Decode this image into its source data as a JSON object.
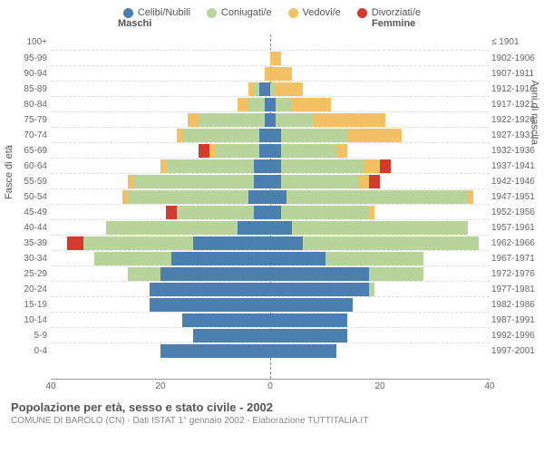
{
  "legend": [
    {
      "label": "Celibi/Nubili",
      "color": "#4a7fb0"
    },
    {
      "label": "Coniugati/e",
      "color": "#b8d49a"
    },
    {
      "label": "Vedovi/e",
      "color": "#f3c163"
    },
    {
      "label": "Divorziati/e",
      "color": "#d33b2f"
    }
  ],
  "headers": {
    "m": "Maschi",
    "f": "Femmine"
  },
  "y_title_left": "Fasce di età",
  "y_title_right": "Anni di nascita",
  "x_ticks": [
    40,
    20,
    0,
    20,
    40
  ],
  "x_max": 40,
  "bg": "#ffffff",
  "grid_color": "#dddddd",
  "rows": [
    {
      "age": "100+",
      "birth": "≤ 1901",
      "m": [
        0,
        0,
        0,
        0
      ],
      "f": [
        0,
        0,
        0,
        0
      ]
    },
    {
      "age": "95-99",
      "birth": "1902-1906",
      "m": [
        0,
        0,
        0,
        0
      ],
      "f": [
        0,
        0,
        2,
        0
      ]
    },
    {
      "age": "90-94",
      "birth": "1907-1911",
      "m": [
        0,
        0,
        1,
        0
      ],
      "f": [
        0,
        0,
        4,
        0
      ]
    },
    {
      "age": "85-89",
      "birth": "1912-1916",
      "m": [
        2,
        1,
        1,
        0
      ],
      "f": [
        0,
        1,
        5,
        0
      ]
    },
    {
      "age": "80-84",
      "birth": "1917-1921",
      "m": [
        1,
        3,
        2,
        0
      ],
      "f": [
        1,
        3,
        7,
        0
      ]
    },
    {
      "age": "75-79",
      "birth": "1922-1926",
      "m": [
        1,
        12,
        2,
        0
      ],
      "f": [
        1,
        7,
        13,
        0
      ]
    },
    {
      "age": "70-74",
      "birth": "1927-1931",
      "m": [
        2,
        14,
        1,
        0
      ],
      "f": [
        2,
        12,
        10,
        0
      ]
    },
    {
      "age": "65-69",
      "birth": "1932-1936",
      "m": [
        2,
        8,
        1,
        2
      ],
      "f": [
        2,
        10,
        2,
        0
      ]
    },
    {
      "age": "60-64",
      "birth": "1937-1941",
      "m": [
        3,
        16,
        1,
        0
      ],
      "f": [
        2,
        15,
        3,
        2
      ]
    },
    {
      "age": "55-59",
      "birth": "1942-1946",
      "m": [
        3,
        22,
        1,
        0
      ],
      "f": [
        2,
        14,
        2,
        2
      ]
    },
    {
      "age": "50-54",
      "birth": "1947-1951",
      "m": [
        4,
        22,
        1,
        0
      ],
      "f": [
        3,
        33,
        1,
        0
      ]
    },
    {
      "age": "45-49",
      "birth": "1952-1956",
      "m": [
        3,
        14,
        0,
        2
      ],
      "f": [
        2,
        16,
        1,
        0
      ]
    },
    {
      "age": "40-44",
      "birth": "1957-1961",
      "m": [
        6,
        24,
        0,
        0
      ],
      "f": [
        4,
        32,
        0,
        0
      ]
    },
    {
      "age": "35-39",
      "birth": "1962-1966",
      "m": [
        14,
        20,
        0,
        3
      ],
      "f": [
        6,
        32,
        0,
        0
      ]
    },
    {
      "age": "30-34",
      "birth": "1967-1971",
      "m": [
        18,
        14,
        0,
        0
      ],
      "f": [
        10,
        18,
        0,
        0
      ]
    },
    {
      "age": "25-29",
      "birth": "1972-1976",
      "m": [
        20,
        6,
        0,
        0
      ],
      "f": [
        18,
        10,
        0,
        0
      ]
    },
    {
      "age": "20-24",
      "birth": "1977-1981",
      "m": [
        22,
        0,
        0,
        0
      ],
      "f": [
        18,
        1,
        0,
        0
      ]
    },
    {
      "age": "15-19",
      "birth": "1982-1986",
      "m": [
        22,
        0,
        0,
        0
      ],
      "f": [
        15,
        0,
        0,
        0
      ]
    },
    {
      "age": "10-14",
      "birth": "1987-1991",
      "m": [
        16,
        0,
        0,
        0
      ],
      "f": [
        14,
        0,
        0,
        0
      ]
    },
    {
      "age": "5-9",
      "birth": "1992-1996",
      "m": [
        14,
        0,
        0,
        0
      ],
      "f": [
        14,
        0,
        0,
        0
      ]
    },
    {
      "age": "0-4",
      "birth": "1997-2001",
      "m": [
        20,
        0,
        0,
        0
      ],
      "f": [
        12,
        0,
        0,
        0
      ]
    }
  ],
  "footer": {
    "title": "Popolazione per età, sesso e stato civile - 2002",
    "subtitle": "COMUNE DI BAROLO (CN) - Dati ISTAT 1° gennaio 2002 - Elaborazione TUTTITALIA.IT"
  }
}
